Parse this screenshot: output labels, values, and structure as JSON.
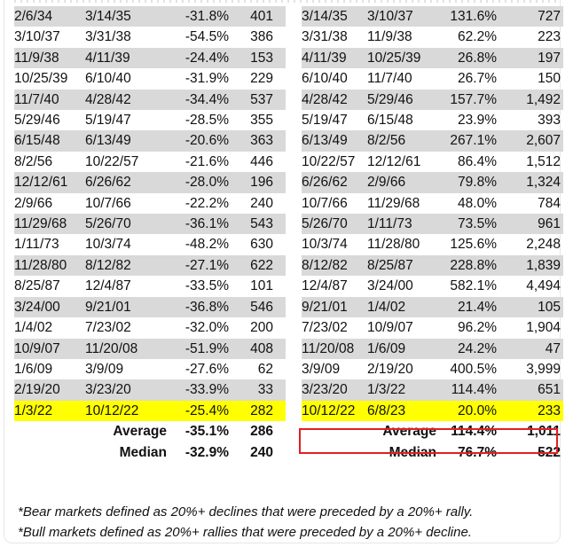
{
  "bear_rows": [
    [
      "2/6/34",
      "3/14/35",
      "-31.8%",
      "401"
    ],
    [
      "3/10/37",
      "3/31/38",
      "-54.5%",
      "386"
    ],
    [
      "11/9/38",
      "4/11/39",
      "-24.4%",
      "153"
    ],
    [
      "10/25/39",
      "6/10/40",
      "-31.9%",
      "229"
    ],
    [
      "11/7/40",
      "4/28/42",
      "-34.4%",
      "537"
    ],
    [
      "5/29/46",
      "5/19/47",
      "-28.5%",
      "355"
    ],
    [
      "6/15/48",
      "6/13/49",
      "-20.6%",
      "363"
    ],
    [
      "8/2/56",
      "10/22/57",
      "-21.6%",
      "446"
    ],
    [
      "12/12/61",
      "6/26/62",
      "-28.0%",
      "196"
    ],
    [
      "2/9/66",
      "10/7/66",
      "-22.2%",
      "240"
    ],
    [
      "11/29/68",
      "5/26/70",
      "-36.1%",
      "543"
    ],
    [
      "1/11/73",
      "10/3/74",
      "-48.2%",
      "630"
    ],
    [
      "11/28/80",
      "8/12/82",
      "-27.1%",
      "622"
    ],
    [
      "8/25/87",
      "12/4/87",
      "-33.5%",
      "101"
    ],
    [
      "3/24/00",
      "9/21/01",
      "-36.8%",
      "546"
    ],
    [
      "1/4/02",
      "7/23/02",
      "-32.0%",
      "200"
    ],
    [
      "10/9/07",
      "11/20/08",
      "-51.9%",
      "408"
    ],
    [
      "1/6/09",
      "3/9/09",
      "-27.6%",
      "62"
    ],
    [
      "2/19/20",
      "3/23/20",
      "-33.9%",
      "33"
    ],
    [
      "1/3/22",
      "10/12/22",
      "-25.4%",
      "282"
    ]
  ],
  "bull_rows": [
    [
      "3/14/35",
      "3/10/37",
      "131.6%",
      "727"
    ],
    [
      "3/31/38",
      "11/9/38",
      "62.2%",
      "223"
    ],
    [
      "4/11/39",
      "10/25/39",
      "26.8%",
      "197"
    ],
    [
      "6/10/40",
      "11/7/40",
      "26.7%",
      "150"
    ],
    [
      "4/28/42",
      "5/29/46",
      "157.7%",
      "1,492"
    ],
    [
      "5/19/47",
      "6/15/48",
      "23.9%",
      "393"
    ],
    [
      "6/13/49",
      "8/2/56",
      "267.1%",
      "2,607"
    ],
    [
      "10/22/57",
      "12/12/61",
      "86.4%",
      "1,512"
    ],
    [
      "6/26/62",
      "2/9/66",
      "79.8%",
      "1,324"
    ],
    [
      "10/7/66",
      "11/29/68",
      "48.0%",
      "784"
    ],
    [
      "5/26/70",
      "1/11/73",
      "73.5%",
      "961"
    ],
    [
      "10/3/74",
      "11/28/80",
      "125.6%",
      "2,248"
    ],
    [
      "8/12/82",
      "8/25/87",
      "228.8%",
      "1,839"
    ],
    [
      "12/4/87",
      "3/24/00",
      "582.1%",
      "4,494"
    ],
    [
      "9/21/01",
      "1/4/02",
      "21.4%",
      "105"
    ],
    [
      "7/23/02",
      "10/9/07",
      "96.2%",
      "1,904"
    ],
    [
      "11/20/08",
      "1/6/09",
      "24.2%",
      "47"
    ],
    [
      "3/9/09",
      "2/19/20",
      "400.5%",
      "3,999"
    ],
    [
      "3/23/20",
      "1/3/22",
      "114.4%",
      "651"
    ],
    [
      "10/12/22",
      "6/8/23",
      "20.0%",
      "233"
    ]
  ],
  "bear_summary": [
    {
      "label": "Average",
      "pct": "-35.1%",
      "days": "286"
    },
    {
      "label": "Median",
      "pct": "-32.9%",
      "days": "240"
    }
  ],
  "bull_summary": [
    {
      "label": "Average",
      "pct": "114.4%",
      "days": "1,011"
    },
    {
      "label": "Median",
      "pct": "76.7%",
      "days": "522"
    }
  ],
  "notes": {
    "bear": "*Bear markets defined as 20%+ declines that were preceded by a 20%+ rally.",
    "bull": "*Bull markets defined as 20%+ rallies that were preceded by a 20%+ decline."
  },
  "colors": {
    "row_shade": "#d9d9d9",
    "highlight": "#ffff00",
    "highlight_border": "#e02020"
  }
}
